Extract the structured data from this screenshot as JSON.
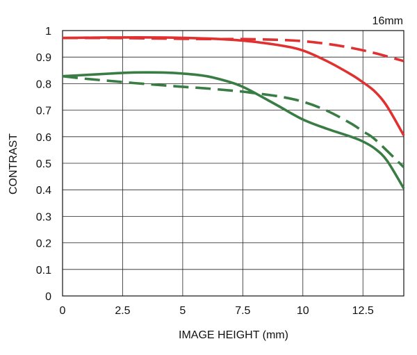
{
  "chart_data": {
    "type": "line",
    "title": "16mm",
    "xlabel": "IMAGE HEIGHT (mm)",
    "ylabel": "CONTRAST",
    "xlim": [
      0,
      14.2
    ],
    "ylim": [
      0,
      1
    ],
    "grid": true,
    "x_ticks": [
      0,
      2.5,
      5,
      7.5,
      10,
      12.5
    ],
    "x_tick_labels": [
      "0",
      "2.5",
      "5",
      "7.5",
      "10",
      "12.5"
    ],
    "y_ticks": [
      0,
      0.1,
      0.2,
      0.3,
      0.4,
      0.5,
      0.6,
      0.7,
      0.8,
      0.9,
      1
    ],
    "y_tick_labels": [
      "0",
      "0.1",
      "0.2",
      "0.3",
      "0.4",
      "0.5",
      "0.6",
      "0.7",
      "0.8",
      "0.9",
      "1"
    ],
    "series": [
      {
        "color": "#e03131",
        "dash": "solid",
        "points": [
          [
            0,
            0.972
          ],
          [
            2,
            0.974
          ],
          [
            4,
            0.974
          ],
          [
            6,
            0.97
          ],
          [
            7.5,
            0.962
          ],
          [
            9,
            0.945
          ],
          [
            10,
            0.925
          ],
          [
            11,
            0.885
          ],
          [
            12,
            0.835
          ],
          [
            12.5,
            0.805
          ],
          [
            13,
            0.77
          ],
          [
            13.5,
            0.715
          ],
          [
            14.2,
            0.605
          ]
        ]
      },
      {
        "color": "#e03131",
        "dash": "dashed",
        "points": [
          [
            0,
            0.972
          ],
          [
            2,
            0.972
          ],
          [
            4,
            0.97
          ],
          [
            6,
            0.968
          ],
          [
            7.5,
            0.968
          ],
          [
            9,
            0.965
          ],
          [
            10,
            0.96
          ],
          [
            11,
            0.95
          ],
          [
            12,
            0.935
          ],
          [
            13,
            0.915
          ],
          [
            14.2,
            0.885
          ]
        ]
      },
      {
        "color": "#3a7d44",
        "dash": "solid",
        "points": [
          [
            0,
            0.828
          ],
          [
            1,
            0.833
          ],
          [
            2,
            0.838
          ],
          [
            3,
            0.842
          ],
          [
            4,
            0.842
          ],
          [
            5,
            0.838
          ],
          [
            6,
            0.828
          ],
          [
            7,
            0.805
          ],
          [
            7.5,
            0.788
          ],
          [
            8,
            0.765
          ],
          [
            9,
            0.715
          ],
          [
            10,
            0.665
          ],
          [
            11,
            0.63
          ],
          [
            12,
            0.6
          ],
          [
            12.5,
            0.582
          ],
          [
            13,
            0.555
          ],
          [
            13.5,
            0.51
          ],
          [
            14.2,
            0.405
          ]
        ]
      },
      {
        "color": "#3a7d44",
        "dash": "dashed",
        "points": [
          [
            0,
            0.828
          ],
          [
            1,
            0.818
          ],
          [
            2,
            0.81
          ],
          [
            3,
            0.802
          ],
          [
            4,
            0.795
          ],
          [
            5,
            0.788
          ],
          [
            6,
            0.782
          ],
          [
            7,
            0.774
          ],
          [
            7.5,
            0.77
          ],
          [
            8,
            0.764
          ],
          [
            9,
            0.752
          ],
          [
            10,
            0.732
          ],
          [
            11,
            0.698
          ],
          [
            12,
            0.65
          ],
          [
            12.5,
            0.62
          ],
          [
            13,
            0.59
          ],
          [
            14.2,
            0.485
          ]
        ]
      }
    ]
  }
}
